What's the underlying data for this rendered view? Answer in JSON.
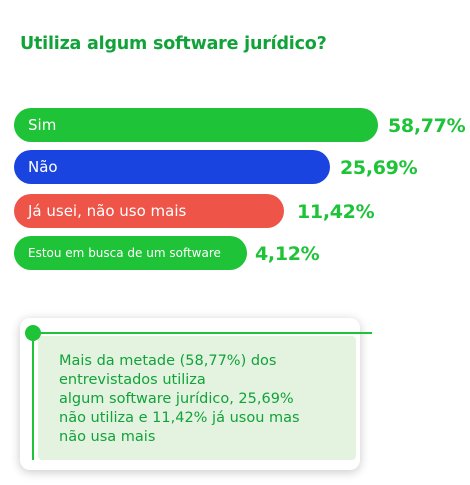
{
  "colors": {
    "green": "#1ec337",
    "blue": "#1a44e0",
    "red": "#ee5448",
    "title": "#12a23a"
  },
  "chart_data": {
    "type": "bar",
    "orientation": "horizontal",
    "title": "Utiliza algum software jurídico?",
    "categories": [
      "Sim",
      "Não",
      "Já usei, não uso mais",
      "Estou em busca de um software"
    ],
    "values": [
      58.77,
      25.69,
      11.42,
      4.12
    ],
    "labels": [
      "58,77%",
      "25,69%",
      "11,42%",
      "4,12%"
    ],
    "bar_colors": [
      "#1ec337",
      "#1a44e0",
      "#ee5448",
      "#1ec337"
    ],
    "xlabel": "",
    "ylabel": ""
  },
  "note": {
    "text": "Mais da metade (58,77%) dos entrevistados utiliza algum software jurídico, 25,69% não utiliza e 11,42% já usou mas não usa mais",
    "lines": [
      "Mais da metade (58,77%) dos",
      "entrevistados utiliza",
      "algum software jurídico, 25,69%",
      "não utiliza e 11,42% já usou mas",
      "não usa mais"
    ]
  }
}
